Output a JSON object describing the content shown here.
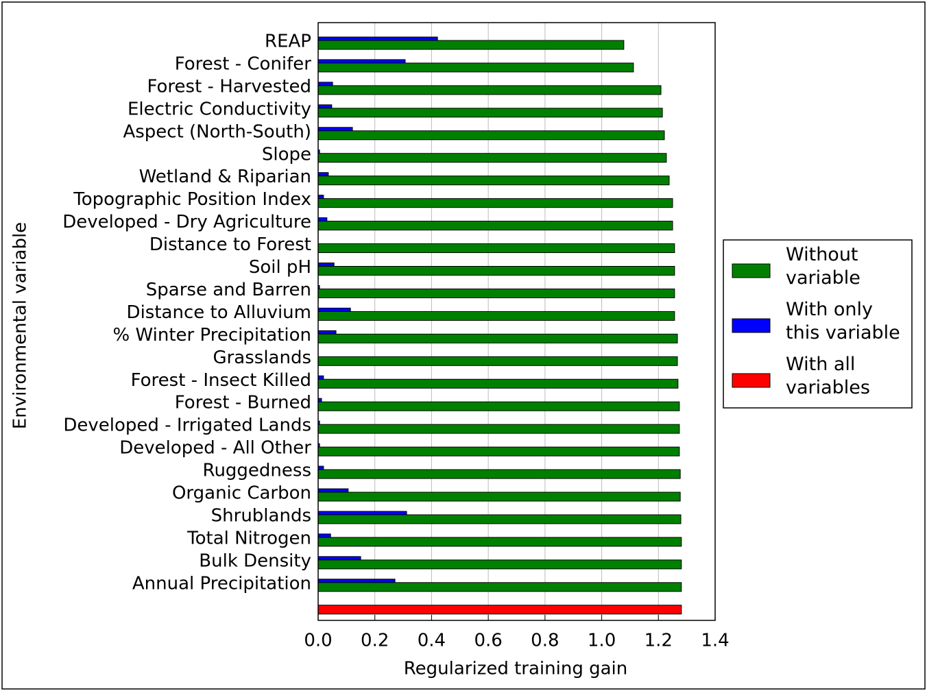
{
  "chart_data": {
    "type": "bar",
    "orientation": "horizontal",
    "x_label": "Regularized training gain",
    "y_label": "Environmental variable",
    "categories": [
      "REAP",
      "Forest - Conifer",
      "Forest - Harvested",
      "Electric Conductivity",
      "Aspect (North-South)",
      "Slope",
      "Wetland & Riparian",
      "Topographic Position Index",
      "Developed - Dry Agriculture",
      "Distance to Forest",
      "Soil pH",
      "Sparse and Barren",
      "Distance to Alluvium",
      "% Winter Precipitation",
      "Grasslands",
      "Forest - Insect Killed",
      "Forest - Burned",
      "Developed - Irrigated Lands",
      "Developed - All Other",
      "Ruggedness",
      "Organic Carbon",
      "Shrublands",
      "Total Nitrogen",
      "Bulk Density",
      "Annual Precipitation",
      null
    ],
    "series": [
      {
        "name": "Without variable",
        "color": "#008000",
        "values": [
          1.078,
          1.112,
          1.209,
          1.214,
          1.221,
          1.228,
          1.238,
          1.25,
          1.25,
          1.257,
          1.257,
          1.257,
          1.257,
          1.267,
          1.267,
          1.269,
          1.274,
          1.274,
          1.274,
          1.277,
          1.277,
          1.279,
          1.281,
          1.281,
          1.281,
          null
        ]
      },
      {
        "name": "With only this variable",
        "color": "#0000ff",
        "values": [
          0.421,
          0.307,
          0.051,
          0.048,
          0.121,
          0.005,
          0.036,
          0.019,
          0.031,
          0,
          0.056,
          0.005,
          0.114,
          0.063,
          0,
          0.019,
          0.012,
          0.005,
          0.005,
          0.019,
          0.106,
          0.312,
          0.044,
          0.15,
          0.271,
          null
        ]
      },
      {
        "name": "With all variables",
        "color": "#ff0000",
        "values": [
          null,
          null,
          null,
          null,
          null,
          null,
          null,
          null,
          null,
          null,
          null,
          null,
          null,
          null,
          null,
          null,
          null,
          null,
          null,
          null,
          null,
          null,
          null,
          null,
          null,
          1.281
        ]
      }
    ],
    "xlim": [
      0,
      1.4
    ],
    "xticks": [
      {
        "value": 0,
        "label": "0.0"
      },
      0.2,
      0.4,
      0.6,
      0.8,
      {
        "value": 1,
        "label": "1.0"
      },
      1.2,
      1.4
    ],
    "grid": true,
    "legend": "right"
  }
}
